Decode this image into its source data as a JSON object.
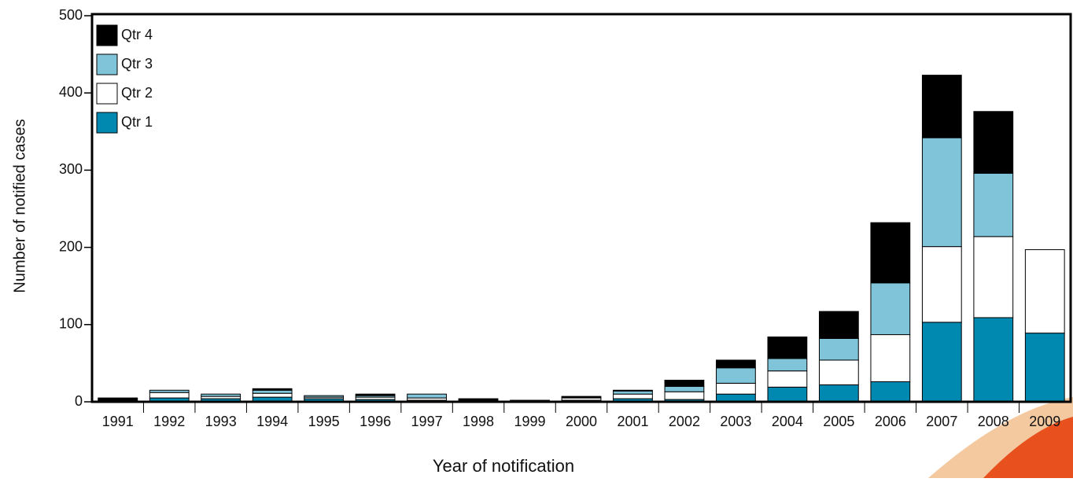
{
  "chart_data": {
    "type": "stacked_bar",
    "x_label": "Year of notification",
    "y_label": "Number of notified cases",
    "categories": [
      "1991",
      "1992",
      "1993",
      "1994",
      "1995",
      "1996",
      "1997",
      "1998",
      "1999",
      "2000",
      "2001",
      "2002",
      "2003",
      "2004",
      "2005",
      "2006",
      "2007",
      "2008",
      "2009"
    ],
    "series": [
      {
        "name": "Qtr 1",
        "color": "#0089b0",
        "values": [
          2,
          5,
          4,
          6,
          4,
          3,
          2,
          2,
          1,
          2,
          4,
          3,
          10,
          19,
          22,
          26,
          103,
          109,
          89
        ]
      },
      {
        "name": "Qtr 2",
        "color": "#ffffff",
        "values": [
          1,
          7,
          3,
          5,
          2,
          3,
          3,
          1,
          1,
          3,
          6,
          10,
          14,
          21,
          32,
          61,
          98,
          105,
          108
        ]
      },
      {
        "name": "Qtr 3",
        "color": "#7fc4d8",
        "values": [
          1,
          3,
          3,
          4,
          2,
          2,
          5,
          1,
          0,
          1,
          4,
          7,
          20,
          16,
          28,
          67,
          141,
          82,
          0
        ]
      },
      {
        "name": "Qtr 4",
        "color": "#000000",
        "values": [
          1,
          0,
          0,
          2,
          0,
          2,
          0,
          0,
          0,
          1,
          1,
          8,
          10,
          28,
          35,
          78,
          81,
          80,
          0
        ]
      }
    ],
    "ylim": [
      0,
      500
    ],
    "yticks": [
      0,
      100,
      200,
      300,
      400,
      500
    ],
    "legend": "top-left"
  }
}
